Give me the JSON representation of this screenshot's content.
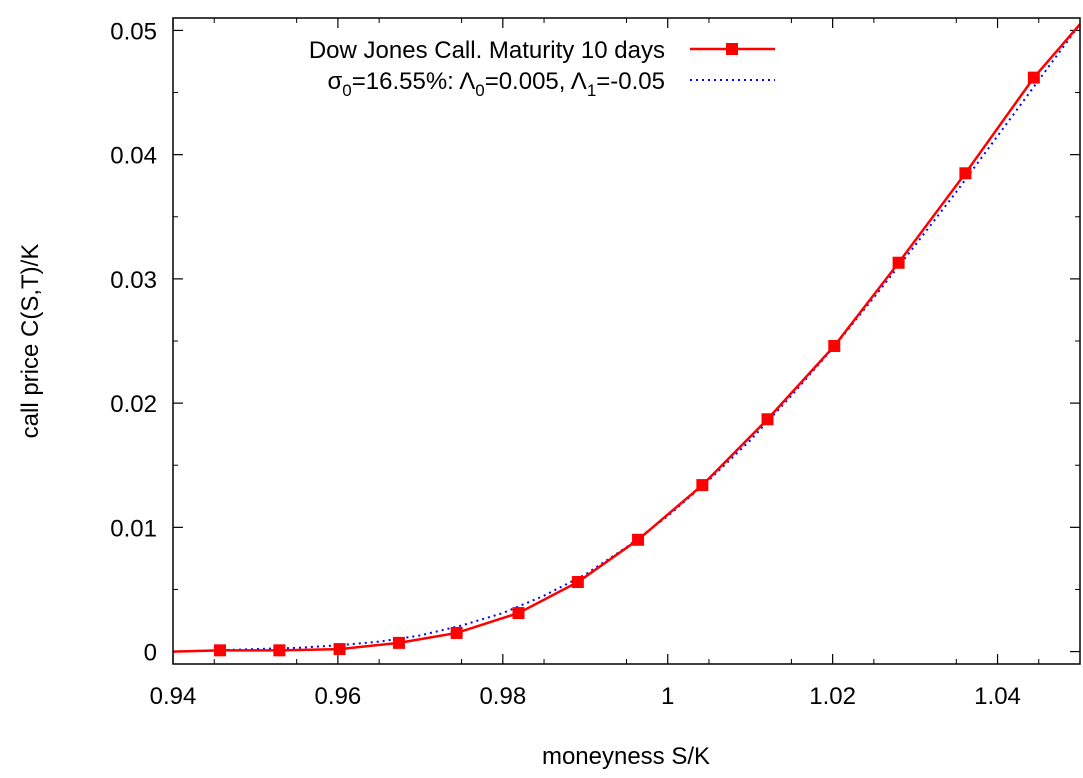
{
  "chart_data": {
    "type": "line",
    "title": "",
    "xlabel": "moneyness S/K",
    "ylabel": "call price C(S,T)/K",
    "xlim": [
      0.94,
      1.05
    ],
    "ylim": [
      -0.001,
      0.051
    ],
    "grid": false,
    "legend_position": "top-left",
    "x_ticks": [
      "0.94",
      "0.96",
      "0.98",
      "1",
      "1.02",
      "1.04"
    ],
    "y_ticks": [
      "0",
      "0.01",
      "0.02",
      "0.03",
      "0.04",
      "0.05"
    ],
    "x_tick_values": [
      0.94,
      0.96,
      0.98,
      1.0,
      1.02,
      1.04
    ],
    "y_tick_values": [
      0,
      0.01,
      0.02,
      0.03,
      0.04,
      0.05
    ],
    "series": [
      {
        "name": "Dow Jones Call. Maturity 10 days",
        "style": "line-points",
        "color": "#ff0000",
        "x": [
          0.9457,
          0.9529,
          0.9602,
          0.9674,
          0.9744,
          0.9819,
          0.9891,
          0.9964,
          1.0042,
          1.0121,
          1.0202,
          1.028,
          1.0361,
          1.0444
        ],
        "y": [
          0.0001,
          0.0001,
          0.0002,
          0.0007,
          0.0015,
          0.0031,
          0.0056,
          0.009,
          0.0134,
          0.0187,
          0.0246,
          0.0313,
          0.0385,
          0.0462
        ]
      },
      {
        "name": "σ0=16.55%: Λ0=0.005, Λ1=-0.05",
        "style": "dotted",
        "color": "#0000ff",
        "x": [
          0.94,
          0.945,
          0.95,
          0.955,
          0.96,
          0.965,
          0.97,
          0.975,
          0.98,
          0.985,
          0.99,
          0.995,
          1.0,
          1.005,
          1.01,
          1.015,
          1.02,
          1.025,
          1.03,
          1.035,
          1.04,
          1.045,
          1.05
        ],
        "y": [
          0.0,
          0.0001,
          0.0002,
          0.0003,
          0.0005,
          0.0008,
          0.0013,
          0.0021,
          0.0031,
          0.0045,
          0.0062,
          0.0084,
          0.0109,
          0.0138,
          0.017,
          0.0206,
          0.0244,
          0.0285,
          0.0327,
          0.037,
          0.0415,
          0.046,
          0.0505
        ]
      }
    ]
  },
  "legend": {
    "entry1": "Dow Jones Call. Maturity 10 days",
    "entry2": {
      "sigma": "σ",
      "sigma_sub": "0",
      "part1": "=16.55%: ",
      "lambda0": "Λ",
      "lambda0_sub": "0",
      "part2": "=0.005, ",
      "lambda1": "Λ",
      "lambda1_sub": "1",
      "part3": "=-0.05"
    }
  }
}
